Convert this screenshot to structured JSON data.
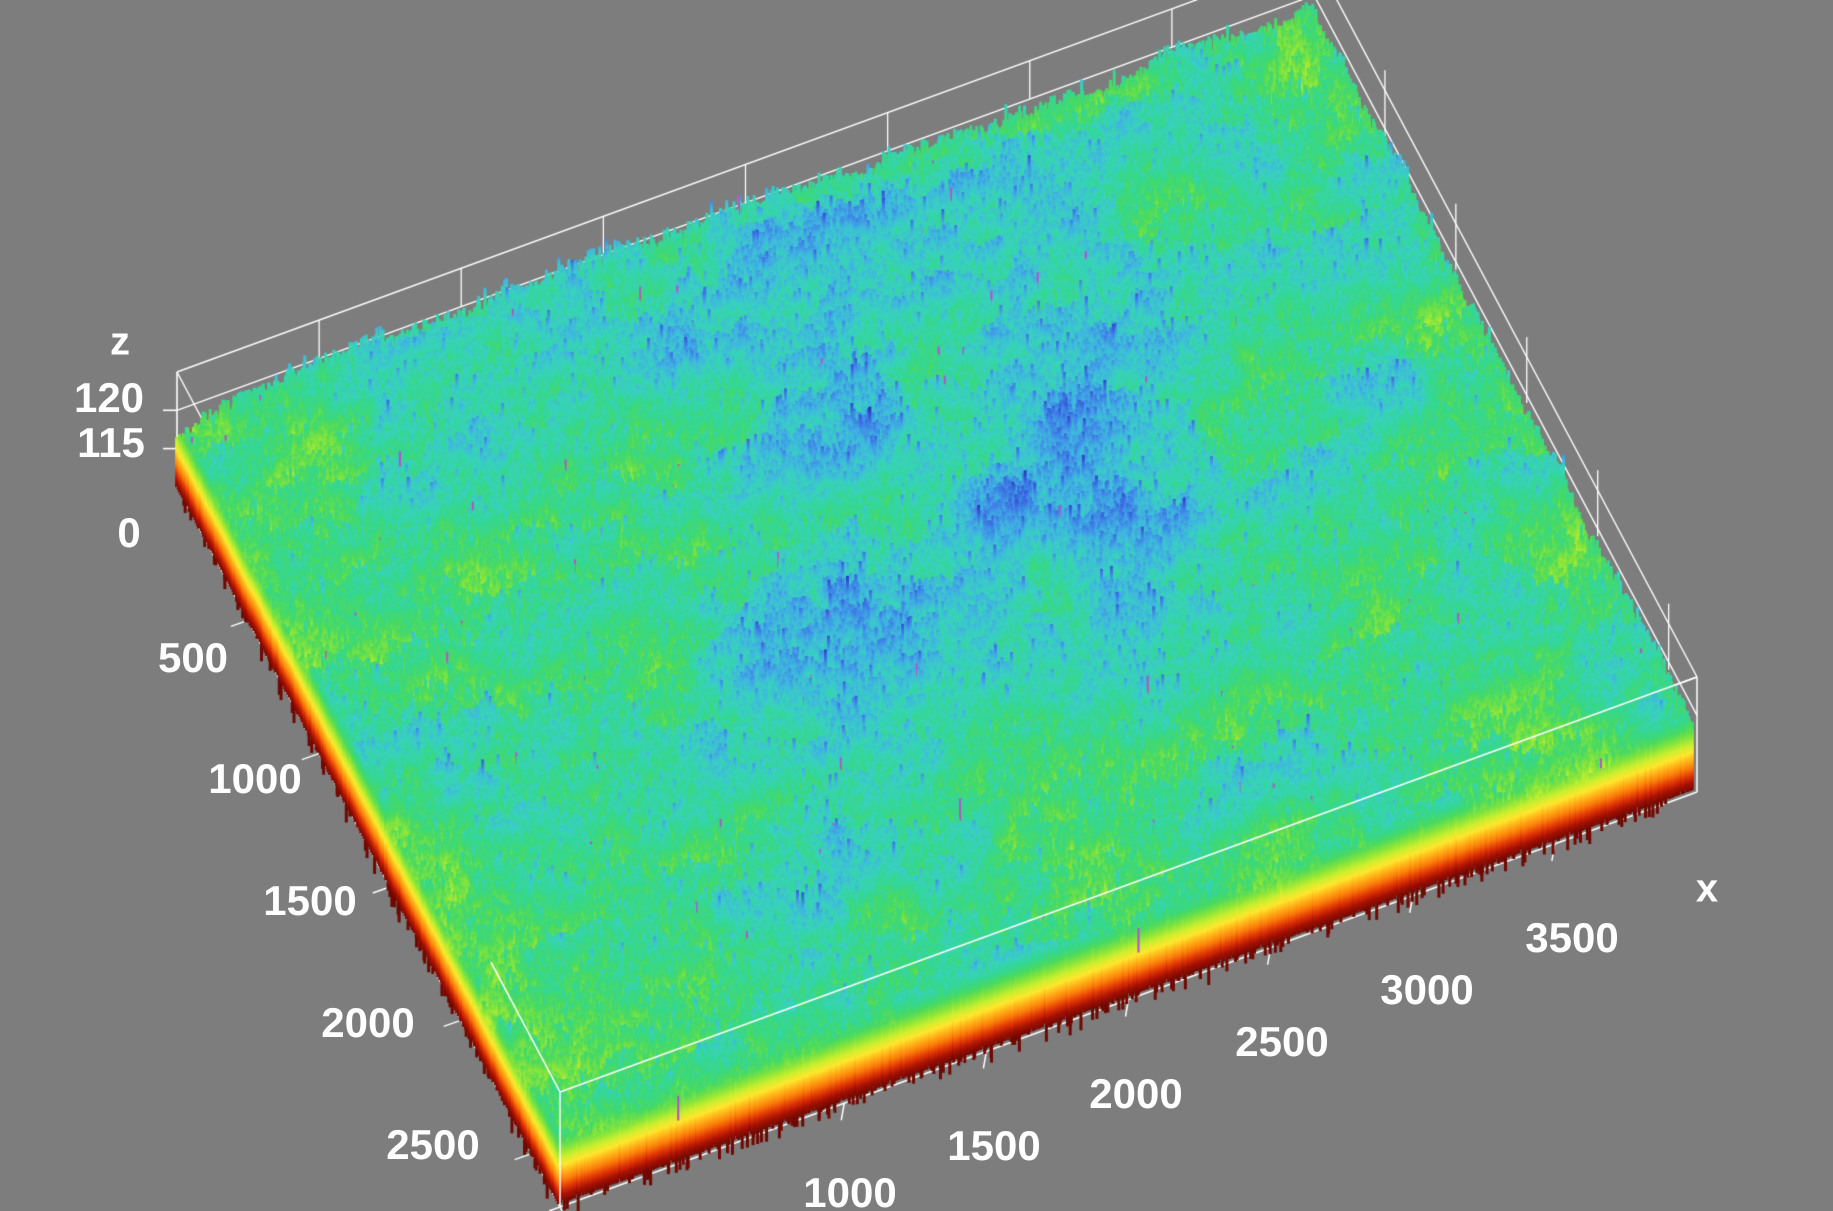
{
  "view": {
    "background_color": "#7d7d7d",
    "wireframe_color": "#ffffff",
    "label_color": "#ffffff"
  },
  "chart_data": {
    "type": "surface3d",
    "title": "",
    "description": "Axonometric 3D view of a dense spiky rough-surface height map; top of surface is cyan/green/blue mottle, side skirts grade down through green, yellow, orange to dark red at the base; white wireframe box and axis ticks on gray background",
    "x_axis": {
      "name": "x",
      "range": [
        0,
        4000
      ],
      "tick_interval": 500,
      "tick_values": [
        1000,
        1500,
        2000,
        2500,
        3000,
        3500
      ]
    },
    "y_axis": {
      "name": "",
      "range": [
        0,
        2700
      ],
      "tick_interval": 500,
      "tick_values": [
        500,
        1000,
        1500,
        2000,
        2500
      ]
    },
    "z_axis": {
      "name": "z",
      "displayed_range": [
        110,
        125
      ],
      "tick_values": [
        120,
        115,
        0
      ]
    },
    "surface": {
      "z_typical_top_range": [
        117,
        124
      ],
      "z_center_bias": "center of field ~1.9 units higher (bluer), edges greener",
      "spike_texture": "high-frequency vertical spikes, tall blue peaks and occasional violet streaks",
      "skirt": "full color gradient visible along front, left and lower-right silhouettes"
    },
    "colormap_low_to_high": [
      {
        "t": 0.0,
        "color": "#6f0800"
      },
      {
        "t": 0.07,
        "color": "#a81203"
      },
      {
        "t": 0.13,
        "color": "#e03505"
      },
      {
        "t": 0.2,
        "color": "#fb7d0a"
      },
      {
        "t": 0.27,
        "color": "#ffb519"
      },
      {
        "t": 0.33,
        "color": "#ffe72e"
      },
      {
        "t": 0.4,
        "color": "#c9ef2e"
      },
      {
        "t": 0.47,
        "color": "#84e43c"
      },
      {
        "t": 0.54,
        "color": "#4ada5f"
      },
      {
        "t": 0.61,
        "color": "#34d78f"
      },
      {
        "t": 0.68,
        "color": "#38d3bd"
      },
      {
        "t": 0.75,
        "color": "#3fb6e0"
      },
      {
        "t": 0.82,
        "color": "#3f86e8"
      },
      {
        "t": 0.89,
        "color": "#3558d8"
      },
      {
        "t": 0.95,
        "color": "#2438b8"
      },
      {
        "t": 1.0,
        "color": "#151f8f"
      }
    ],
    "rare_streak_color": "#b058c8"
  },
  "labels": {
    "z_name": "z",
    "x_name": "x",
    "z_ticks": [
      "120",
      "115",
      "0"
    ],
    "y_ticks": [
      "500",
      "1000",
      "1500",
      "2000",
      "2500"
    ],
    "x_ticks": [
      "1000",
      "1500",
      "2000",
      "2500",
      "3000",
      "3500"
    ]
  }
}
